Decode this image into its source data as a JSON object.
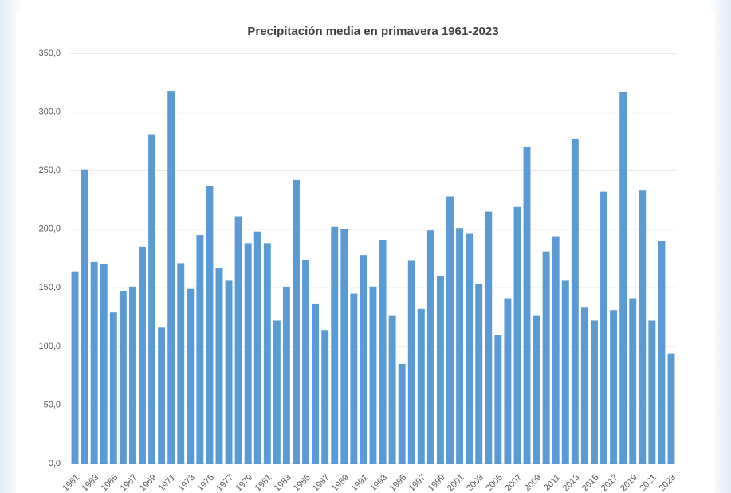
{
  "chart_data": {
    "type": "bar",
    "title": "Precipitación media en primavera 1961-2023",
    "categories": [
      "1961",
      null,
      "1963",
      null,
      "1965",
      null,
      "1967",
      null,
      "1969",
      null,
      "1971",
      null,
      "1973",
      null,
      "1975",
      null,
      "1977",
      null,
      "1979",
      null,
      "1981",
      null,
      "1983",
      null,
      "1985",
      null,
      "1987",
      null,
      "1989",
      null,
      "1991",
      null,
      "1993",
      null,
      "1995",
      null,
      "1997",
      null,
      "1999",
      null,
      "2001",
      null,
      "2003",
      null,
      "2005",
      null,
      "2007",
      null,
      "2009",
      null,
      "2011",
      null,
      "2013",
      null,
      "2015",
      null,
      "2017",
      null,
      "2019",
      null,
      "2021",
      null,
      "2023"
    ],
    "values": [
      164,
      251,
      172,
      170,
      129,
      147,
      151,
      185,
      281,
      116,
      318,
      171,
      149,
      195,
      237,
      167,
      156,
      211,
      188,
      198,
      188,
      122,
      151,
      242,
      174,
      136,
      114,
      202,
      200,
      145,
      178,
      151,
      191,
      126,
      85,
      173,
      132,
      199,
      160,
      228,
      201,
      196,
      153,
      215,
      110,
      141,
      219,
      270,
      126,
      181,
      194,
      156,
      277,
      133,
      122,
      232,
      131,
      317,
      141,
      233,
      122,
      190,
      94
    ],
    "color": "#5b9bd5",
    "ylim": [
      0,
      350
    ],
    "yticks": [
      {
        "value": 0,
        "label": "0,0"
      },
      {
        "value": 50,
        "label": "50,0"
      },
      {
        "value": 100,
        "label": "100,0"
      },
      {
        "value": 150,
        "label": "150,0"
      },
      {
        "value": 200,
        "label": "200,0"
      },
      {
        "value": 250,
        "label": "250,0"
      },
      {
        "value": 300,
        "label": "300,0"
      },
      {
        "value": 350,
        "label": "350,0"
      }
    ],
    "grid": true
  }
}
